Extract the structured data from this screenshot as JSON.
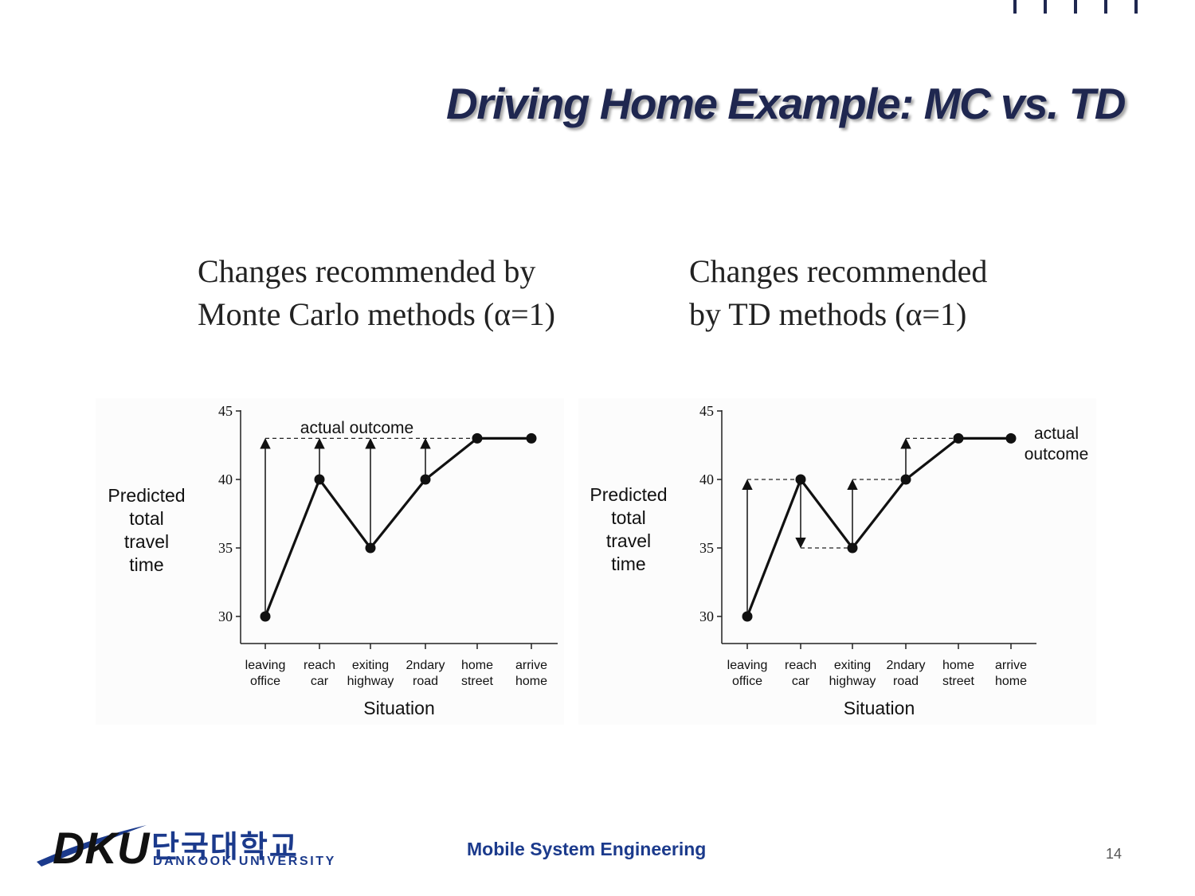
{
  "slide": {
    "title": "Driving Home Example: MC vs. TD",
    "page_number": "14",
    "footer": "Mobile System Engineering",
    "logo": {
      "korean": "단국대학교",
      "english": "DANKOOK UNIVERSITY",
      "mark": "DKU"
    }
  },
  "captions": {
    "mc": [
      "Changes recommended by",
      "Monte Carlo methods (α=1)"
    ],
    "td": [
      "Changes recommended",
      "by TD methods (α=1)"
    ]
  },
  "colors": {
    "title": "#1f2750",
    "brand": "#1b3a8c"
  },
  "chart_data": [
    {
      "type": "line",
      "categories": [
        [
          "leaving",
          "office"
        ],
        [
          "reach",
          "car"
        ],
        [
          "exiting",
          "highway"
        ],
        [
          "2ndary",
          "road"
        ],
        [
          "home",
          "street"
        ],
        [
          "arrive",
          "home"
        ]
      ],
      "values": [
        30,
        40,
        35,
        40,
        43,
        43
      ],
      "ylabel": [
        "Predicted",
        "total",
        "travel",
        "time"
      ],
      "xlabel": "Situation",
      "ylim": [
        30,
        45
      ],
      "yticks": [
        30,
        35,
        40,
        45
      ],
      "actual_outcome": 43,
      "annotation": "actual outcome",
      "updates": [
        {
          "from_index": 0,
          "to": 43
        },
        {
          "from_index": 1,
          "to": 43
        },
        {
          "from_index": 2,
          "to": 43
        },
        {
          "from_index": 3,
          "to": 43
        }
      ]
    },
    {
      "type": "line",
      "categories": [
        [
          "leaving",
          "office"
        ],
        [
          "reach",
          "car"
        ],
        [
          "exiting",
          "highway"
        ],
        [
          "2ndary",
          "road"
        ],
        [
          "home",
          "street"
        ],
        [
          "arrive",
          "home"
        ]
      ],
      "values": [
        30,
        40,
        35,
        40,
        43,
        43
      ],
      "ylabel": [
        "Predicted",
        "total",
        "travel",
        "time"
      ],
      "xlabel": "Situation",
      "ylim": [
        30,
        45
      ],
      "yticks": [
        30,
        35,
        40,
        45
      ],
      "actual_outcome": 43,
      "annotation": [
        "actual",
        "outcome"
      ],
      "updates": [
        {
          "from_index": 0,
          "to": 40
        },
        {
          "from_index": 1,
          "to": 35
        },
        {
          "from_index": 2,
          "to": 40
        },
        {
          "from_index": 3,
          "to": 43
        }
      ]
    }
  ]
}
